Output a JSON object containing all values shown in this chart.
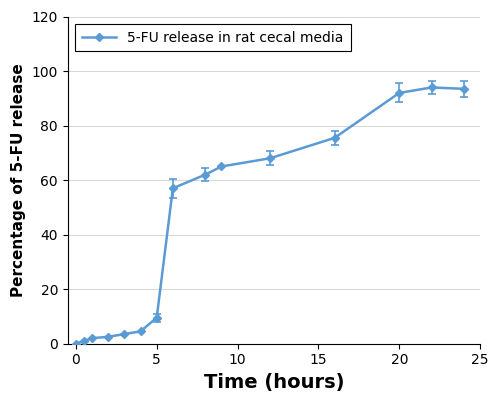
{
  "x": [
    0,
    0.5,
    1,
    2,
    3,
    4,
    5,
    6,
    8,
    9,
    12,
    16,
    20,
    22,
    24
  ],
  "y": [
    0,
    1.0,
    2.0,
    2.5,
    3.5,
    4.5,
    9.5,
    57.0,
    62.0,
    65.0,
    68.0,
    75.5,
    92.0,
    94.0,
    93.5
  ],
  "yerr": [
    0,
    0,
    0,
    0,
    0,
    0,
    1.5,
    3.5,
    2.5,
    0,
    2.5,
    2.5,
    3.5,
    2.5,
    3.0
  ],
  "eb_mask": [
    false,
    false,
    false,
    false,
    false,
    false,
    true,
    true,
    true,
    false,
    true,
    true,
    true,
    true,
    true
  ],
  "line_color": "#5B9BD5",
  "marker": "D",
  "marker_size": 4,
  "line_width": 1.8,
  "legend_label": "5-FU release in rat cecal media",
  "xlabel": "Time (hours)",
  "ylabel": "Percentage of 5-FU release",
  "xlim": [
    -0.5,
    25
  ],
  "ylim": [
    0,
    120
  ],
  "xticks": [
    0,
    5,
    10,
    15,
    20,
    25
  ],
  "yticks": [
    0,
    20,
    40,
    60,
    80,
    100,
    120
  ],
  "xlabel_fontsize": 14,
  "ylabel_fontsize": 11,
  "tick_fontsize": 10,
  "legend_fontsize": 10,
  "figure_width": 5.0,
  "figure_height": 4.03,
  "dpi": 100,
  "background_color": "#ffffff",
  "grid_color": "#d0d0d0",
  "capsize": 3,
  "elinewidth": 1.2,
  "capthick": 1.2
}
